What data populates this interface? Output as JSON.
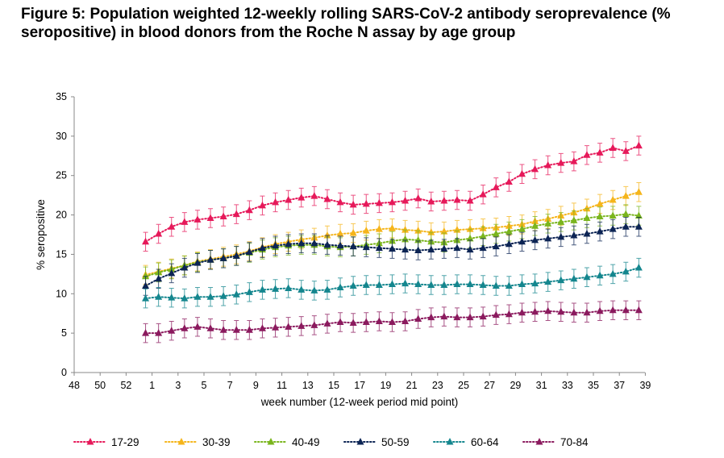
{
  "title": "Figure 5: Population weighted 12-weekly rolling SARS-CoV-2 antibody seroprevalence (% seropositive) in blood donors from the Roche N assay by age group",
  "chart_data": {
    "type": "line",
    "title": "Figure 5: Population weighted 12-weekly rolling SARS-CoV-2 antibody seroprevalence (% seropositive) in blood donors from the Roche N assay by age group",
    "xlabel": "week number (12-week period mid point)",
    "ylabel": "% seropositive",
    "ylim": [
      0,
      35
    ],
    "yticks": [
      "0",
      "5",
      "10",
      "15",
      "20",
      "25",
      "30",
      "35"
    ],
    "xticks": [
      "48",
      "50",
      "52",
      "1",
      "3",
      "5",
      "7",
      "9",
      "11",
      "13",
      "15",
      "17",
      "19",
      "21",
      "23",
      "25",
      "27",
      "29",
      "31",
      "33",
      "35",
      "37",
      "39"
    ],
    "x": [
      "53",
      "1",
      "2",
      "3",
      "4",
      "5",
      "6",
      "7",
      "8",
      "9",
      "10",
      "11",
      "12",
      "13",
      "14",
      "15",
      "16",
      "17",
      "18",
      "19",
      "20",
      "21",
      "22",
      "23",
      "24",
      "25",
      "26",
      "27",
      "28",
      "29",
      "30",
      "31",
      "32",
      "33",
      "34",
      "35",
      "36",
      "37",
      "38"
    ],
    "error_bar_halfwidth": 1.2,
    "grid": false,
    "legend_position": "bottom",
    "marker": "triangle",
    "line_style": "dotted",
    "series": [
      {
        "name": "17-29",
        "color": "#e6195a",
        "values": [
          16.6,
          17.6,
          18.5,
          19.1,
          19.4,
          19.6,
          19.8,
          20.1,
          20.6,
          21.2,
          21.6,
          21.9,
          22.2,
          22.4,
          22.0,
          21.6,
          21.3,
          21.4,
          21.5,
          21.6,
          21.8,
          22.1,
          21.7,
          21.8,
          21.9,
          21.8,
          22.6,
          23.5,
          24.2,
          25.2,
          25.8,
          26.3,
          26.6,
          26.8,
          27.6,
          27.9,
          28.5,
          28.1,
          28.8
        ]
      },
      {
        "name": "30-39",
        "color": "#f5b51b",
        "values": [
          12.4,
          12.8,
          13.2,
          13.6,
          14.1,
          14.4,
          14.7,
          15.0,
          15.4,
          15.9,
          16.3,
          16.6,
          16.9,
          17.1,
          17.4,
          17.6,
          17.7,
          18.0,
          18.2,
          18.3,
          18.1,
          18.0,
          17.8,
          17.9,
          18.1,
          18.2,
          18.3,
          18.4,
          18.6,
          18.8,
          19.2,
          19.5,
          19.9,
          20.3,
          20.8,
          21.4,
          21.9,
          22.4,
          22.9
        ]
      },
      {
        "name": "40-49",
        "color": "#7ab51d",
        "values": [
          12.2,
          12.7,
          13.1,
          13.6,
          14.0,
          14.3,
          14.5,
          14.8,
          15.2,
          15.6,
          15.9,
          16.1,
          16.2,
          16.2,
          16.0,
          15.9,
          16.0,
          16.2,
          16.4,
          16.7,
          16.9,
          16.8,
          16.6,
          16.5,
          16.8,
          17.0,
          17.3,
          17.6,
          17.9,
          18.2,
          18.6,
          18.9,
          19.1,
          19.3,
          19.6,
          19.8,
          19.9,
          20.1,
          19.9
        ]
      },
      {
        "name": "50-59",
        "color": "#0c2454",
        "values": [
          11.0,
          11.9,
          12.6,
          13.3,
          13.9,
          14.3,
          14.5,
          14.8,
          15.3,
          15.8,
          16.1,
          16.3,
          16.4,
          16.4,
          16.2,
          16.1,
          16.0,
          15.9,
          15.8,
          15.7,
          15.6,
          15.5,
          15.6,
          15.7,
          15.8,
          15.6,
          15.8,
          16.0,
          16.3,
          16.6,
          16.8,
          17.0,
          17.2,
          17.4,
          17.6,
          17.9,
          18.2,
          18.5,
          18.5
        ]
      },
      {
        "name": "60-64",
        "color": "#14868e",
        "values": [
          9.4,
          9.6,
          9.5,
          9.4,
          9.6,
          9.6,
          9.7,
          9.9,
          10.2,
          10.5,
          10.6,
          10.7,
          10.5,
          10.4,
          10.5,
          10.8,
          11.0,
          11.1,
          11.1,
          11.2,
          11.3,
          11.2,
          11.1,
          11.1,
          11.2,
          11.2,
          11.1,
          11.0,
          11.0,
          11.2,
          11.3,
          11.5,
          11.7,
          11.9,
          12.1,
          12.3,
          12.5,
          12.8,
          13.3
        ]
      },
      {
        "name": "70-84",
        "color": "#8b1a5e",
        "values": [
          5.0,
          5.0,
          5.3,
          5.6,
          5.8,
          5.6,
          5.4,
          5.4,
          5.4,
          5.6,
          5.7,
          5.8,
          5.9,
          6.0,
          6.2,
          6.4,
          6.3,
          6.4,
          6.5,
          6.4,
          6.5,
          6.8,
          7.0,
          7.1,
          7.0,
          7.0,
          7.1,
          7.3,
          7.4,
          7.6,
          7.7,
          7.8,
          7.7,
          7.6,
          7.6,
          7.8,
          7.9,
          7.9,
          7.9
        ]
      }
    ]
  }
}
